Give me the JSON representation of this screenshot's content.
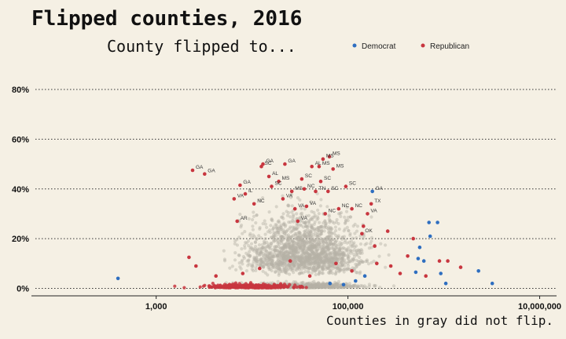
{
  "chart_data": {
    "type": "scatter",
    "title": "Flipped counties, 2016",
    "subtitle": "County flipped to...",
    "caption": "Counties in gray did not flip.",
    "xscale": "log",
    "xlim": [
      50,
      15000000
    ],
    "ylim": [
      -0.03,
      0.86
    ],
    "x_ticks": [
      {
        "value": 1000,
        "label": "1,000"
      },
      {
        "value": 100000,
        "label": "100,000"
      },
      {
        "value": 10000000,
        "label": "10,000,000"
      }
    ],
    "y_ticks": [
      {
        "value": 0,
        "label": "0%"
      },
      {
        "value": 0.2,
        "label": "20%"
      },
      {
        "value": 0.4,
        "label": "40%"
      },
      {
        "value": 0.6,
        "label": "60%"
      },
      {
        "value": 0.8,
        "label": "80%"
      }
    ],
    "grid": true,
    "legend_position": "top-right",
    "colors": {
      "background": "#f5f0e4",
      "democrat": "#2e6ec0",
      "republican": "#c8363f",
      "not_flipped": "#b5b1a6"
    },
    "series": [
      {
        "name": "Democrat",
        "color": "#2e6ec0",
        "points": [
          {
            "x": 400,
            "y": 0.04
          },
          {
            "x": 180000,
            "y": 0.39,
            "label": "GA"
          },
          {
            "x": 540000,
            "y": 0.12
          },
          {
            "x": 560000,
            "y": 0.165
          },
          {
            "x": 700000,
            "y": 0.265
          },
          {
            "x": 720000,
            "y": 0.21
          },
          {
            "x": 860000,
            "y": 0.265
          },
          {
            "x": 930000,
            "y": 0.06
          },
          {
            "x": 1050000,
            "y": 0.02
          },
          {
            "x": 2300000,
            "y": 0.07
          },
          {
            "x": 3200000,
            "y": 0.02
          },
          {
            "x": 510000,
            "y": 0.065
          },
          {
            "x": 620000,
            "y": 0.11
          },
          {
            "x": 120000,
            "y": 0.03
          },
          {
            "x": 65000,
            "y": 0.02
          },
          {
            "x": 90000,
            "y": 0.015
          },
          {
            "x": 150000,
            "y": 0.05
          }
        ]
      },
      {
        "name": "Republican",
        "color": "#c8363f",
        "points": [
          {
            "x": 2400,
            "y": 0.475,
            "label": "GA"
          },
          {
            "x": 3200,
            "y": 0.46,
            "label": "GA"
          },
          {
            "x": 7500,
            "y": 0.415,
            "label": "GA"
          },
          {
            "x": 6500,
            "y": 0.36,
            "label": "VA"
          },
          {
            "x": 8500,
            "y": 0.38,
            "label": "IL"
          },
          {
            "x": 7000,
            "y": 0.27,
            "label": "AR"
          },
          {
            "x": 10500,
            "y": 0.34,
            "label": "NC"
          },
          {
            "x": 12500,
            "y": 0.49,
            "label": "SC"
          },
          {
            "x": 13000,
            "y": 0.5,
            "label": "GA"
          },
          {
            "x": 15000,
            "y": 0.45,
            "label": "AL"
          },
          {
            "x": 16000,
            "y": 0.41,
            "label": "SC"
          },
          {
            "x": 19000,
            "y": 0.43,
            "label": "MS"
          },
          {
            "x": 21000,
            "y": 0.36,
            "label": "VA"
          },
          {
            "x": 22000,
            "y": 0.5,
            "label": "GA"
          },
          {
            "x": 26000,
            "y": 0.39,
            "label": "MS"
          },
          {
            "x": 28000,
            "y": 0.32,
            "label": "VA"
          },
          {
            "x": 30000,
            "y": 0.27,
            "label": "VA"
          },
          {
            "x": 33000,
            "y": 0.44,
            "label": "SC"
          },
          {
            "x": 35000,
            "y": 0.4,
            "label": "NC"
          },
          {
            "x": 37000,
            "y": 0.33,
            "label": "VA"
          },
          {
            "x": 42000,
            "y": 0.49,
            "label": "AL"
          },
          {
            "x": 46000,
            "y": 0.39,
            "label": "TN"
          },
          {
            "x": 50000,
            "y": 0.49,
            "label": "MS"
          },
          {
            "x": 52000,
            "y": 0.43,
            "label": "SC"
          },
          {
            "x": 55000,
            "y": 0.52,
            "label": "MS"
          },
          {
            "x": 58000,
            "y": 0.3,
            "label": "NC"
          },
          {
            "x": 62000,
            "y": 0.39,
            "label": "SC"
          },
          {
            "x": 64000,
            "y": 0.53,
            "label": "MS"
          },
          {
            "x": 70000,
            "y": 0.48,
            "label": "MS"
          },
          {
            "x": 80000,
            "y": 0.32,
            "label": "NC"
          },
          {
            "x": 95000,
            "y": 0.41,
            "label": "SC"
          },
          {
            "x": 110000,
            "y": 0.32,
            "label": "NC"
          },
          {
            "x": 140000,
            "y": 0.22,
            "label": "OK"
          },
          {
            "x": 160000,
            "y": 0.3,
            "label": "VA"
          },
          {
            "x": 175000,
            "y": 0.34,
            "label": "TX"
          },
          {
            "x": 145000,
            "y": 0.25
          },
          {
            "x": 190000,
            "y": 0.17
          },
          {
            "x": 260000,
            "y": 0.23
          },
          {
            "x": 480000,
            "y": 0.2
          },
          {
            "x": 1500000,
            "y": 0.085
          },
          {
            "x": 2200,
            "y": 0.125
          },
          {
            "x": 2600,
            "y": 0.09
          },
          {
            "x": 4200,
            "y": 0.05
          },
          {
            "x": 8000,
            "y": 0.06
          },
          {
            "x": 12000,
            "y": 0.08
          },
          {
            "x": 25000,
            "y": 0.11
          },
          {
            "x": 40000,
            "y": 0.05
          },
          {
            "x": 75000,
            "y": 0.1
          },
          {
            "x": 110000,
            "y": 0.07
          },
          {
            "x": 200000,
            "y": 0.1
          },
          {
            "x": 280000,
            "y": 0.09
          },
          {
            "x": 350000,
            "y": 0.06
          },
          {
            "x": 420000,
            "y": 0.13
          },
          {
            "x": 650000,
            "y": 0.05
          },
          {
            "x": 900000,
            "y": 0.11
          },
          {
            "x": 1100000,
            "y": 0.11
          }
        ]
      },
      {
        "name": "Did not flip",
        "color": "#b5b1a6",
        "generated_count": 2300,
        "note": "dense cloud of gray points centered near 40,000 and 10–40%"
      }
    ]
  }
}
